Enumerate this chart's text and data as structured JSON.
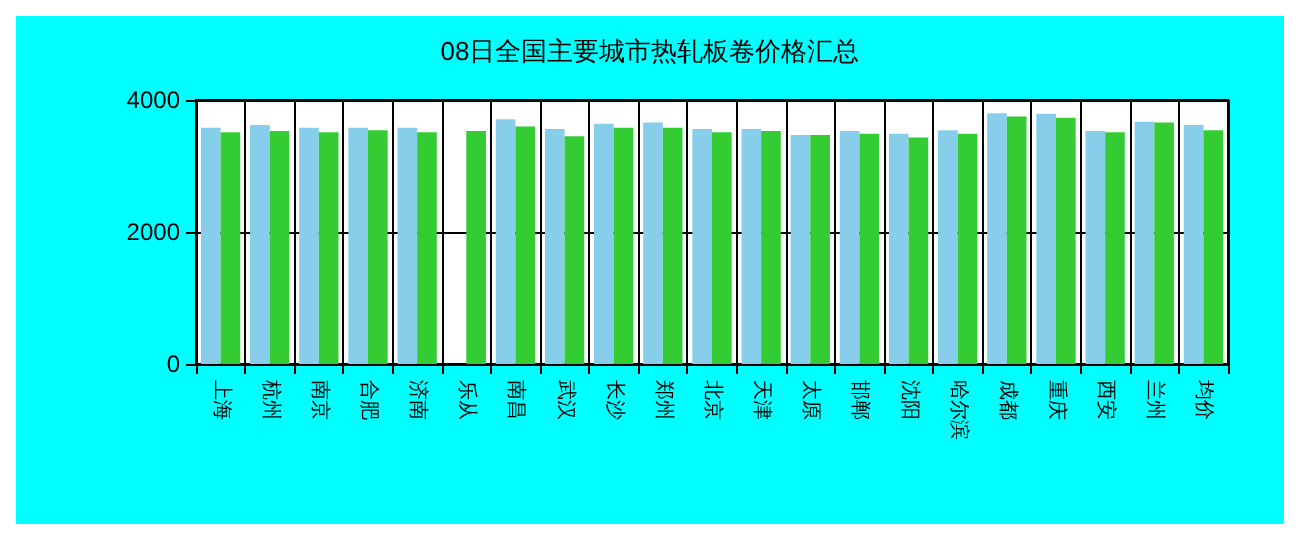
{
  "chart_data": {
    "type": "bar",
    "title": "08日全国主要城市热轧板卷价格汇总",
    "categories": [
      "上海",
      "杭州",
      "南京",
      "合肥",
      "济南",
      "乐从",
      "南昌",
      "武汉",
      "长沙",
      "郑州",
      "北京",
      "天津",
      "太原",
      "邯郸",
      "沈阳",
      "哈尔滨",
      "成都",
      "重庆",
      "西安",
      "兰州",
      "均价"
    ],
    "series": [
      {
        "color": "#87ceeb",
        "values": [
          3580,
          3620,
          3580,
          3580,
          3580,
          null,
          3710,
          3560,
          3640,
          3660,
          3560,
          3560,
          3470,
          3530,
          3490,
          3540,
          3800,
          3790,
          3530,
          3670,
          3620
        ]
      },
      {
        "color": "#33cc33",
        "values": [
          3510,
          3530,
          3510,
          3540,
          3510,
          3530,
          3600,
          3450,
          3580,
          3580,
          3510,
          3530,
          3470,
          3490,
          3430,
          3490,
          3750,
          3730,
          3510,
          3660,
          3540
        ]
      }
    ],
    "ylim": [
      0,
      4000
    ],
    "yticks": [
      0,
      2000,
      4000
    ],
    "grid": true
  }
}
